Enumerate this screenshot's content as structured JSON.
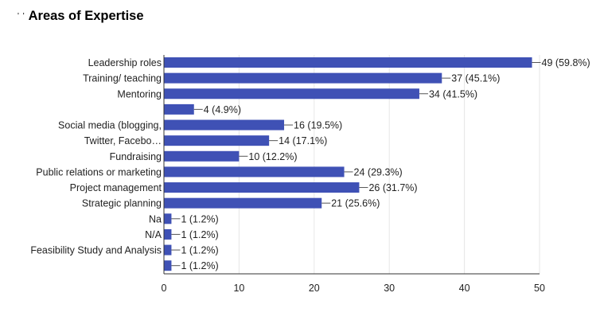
{
  "chart_data": {
    "type": "bar",
    "orientation": "horizontal",
    "title": "Areas of Expertise",
    "title_prefix": "' '",
    "categories": [
      "Leadership roles",
      "Training/ teaching",
      "Mentoring",
      "",
      "Social media (blogging,",
      "Twitter, Facebo…",
      "Fundraising",
      "Public relations or marketing",
      "Project management",
      "Strategic planning",
      "Na",
      "N/A",
      "Feasibility Study and Analysis",
      ""
    ],
    "values": [
      49,
      37,
      34,
      4,
      16,
      14,
      10,
      24,
      26,
      21,
      1,
      1,
      1,
      1
    ],
    "value_labels": [
      "49 (59.8%)",
      "37 (45.1%)",
      "34 (41.5%)",
      "4 (4.9%)",
      "16 (19.5%)",
      "14 (17.1%)",
      "10 (12.2%)",
      "24 (29.3%)",
      "26 (31.7%)",
      "21 (25.6%)",
      "1 (1.2%)",
      "1 (1.2%)",
      "1 (1.2%)",
      "1 (1.2%)"
    ],
    "xlim": [
      0,
      50
    ],
    "xticks": [
      "0",
      "10",
      "20",
      "30",
      "40",
      "50"
    ],
    "xlabel": "",
    "ylabel": "",
    "grid": true,
    "legend": "none",
    "bar_color": "#3f51b5",
    "grid_color": "#e6e6e6",
    "axis_color": "#333333",
    "text_color": "#222222"
  }
}
